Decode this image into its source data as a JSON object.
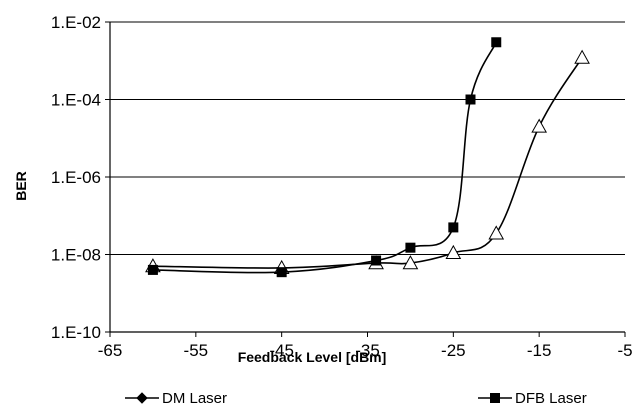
{
  "chart_data": {
    "type": "line",
    "xlabel": "Feedback Level [dBm]",
    "ylabel": "BER",
    "xlim": [
      -65,
      -5
    ],
    "ylim": [
      1e-10,
      0.01
    ],
    "yscale": "log",
    "x_ticks": [
      -65,
      -55,
      -45,
      -35,
      -25,
      -15,
      -5
    ],
    "x_tick_labels": [
      "-65",
      "-55",
      "-45",
      "-35",
      "-25",
      "-15",
      "-5"
    ],
    "y_ticks": [
      1e-10,
      1e-08,
      1e-06,
      0.0001,
      0.01
    ],
    "y_tick_labels": [
      "1.E-10",
      "1.E-08",
      "1.E-06",
      "1.E-04",
      "1.E-02"
    ],
    "grid": "horizontal at major y ticks",
    "legend_position": "bottom",
    "series": [
      {
        "name": "DM Laser",
        "marker": "diamond",
        "legend_marker": "diamond",
        "x": [
          -60,
          -45,
          -34,
          -30,
          -25,
          -20,
          -15,
          -10
        ],
        "y": [
          5e-09,
          4.5e-09,
          6e-09,
          6e-09,
          1.1e-08,
          3.5e-08,
          2e-05,
          0.0012
        ]
      },
      {
        "name": "DFB Laser",
        "marker": "square",
        "legend_marker": "square",
        "x": [
          -60,
          -45,
          -34,
          -30,
          -25,
          -23,
          -20
        ],
        "y": [
          4e-09,
          3.5e-09,
          7e-09,
          1.5e-08,
          5e-08,
          0.0001,
          0.003
        ]
      }
    ]
  }
}
